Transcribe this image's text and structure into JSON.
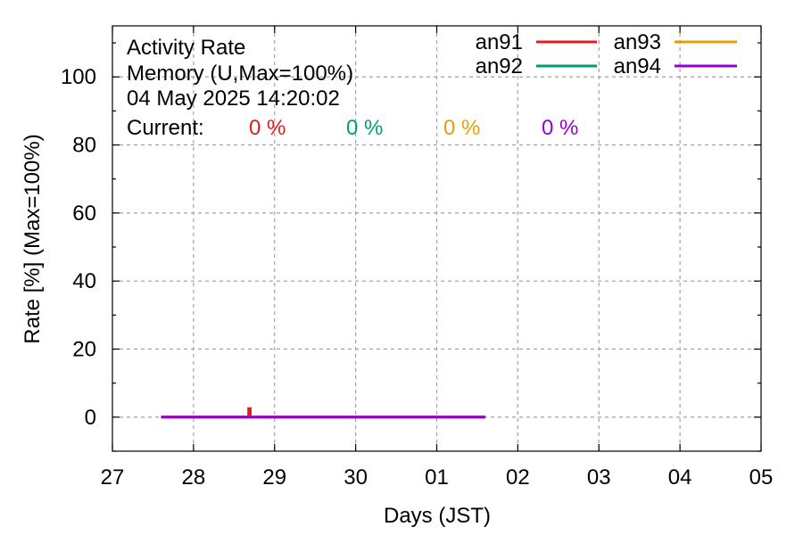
{
  "chart_data": {
    "type": "line",
    "title_lines": [
      "Activity Rate",
      "Memory (U,Max=100%)",
      "04 May 2025 14:20:02"
    ],
    "current_label": "Current:",
    "xlabel": "Days (JST)",
    "ylabel": "Rate [%]  (Max=100%)",
    "x_categories": [
      "27",
      "28",
      "29",
      "30",
      "01",
      "02",
      "03",
      "04",
      "05"
    ],
    "xlim": [
      0,
      8
    ],
    "ylim": [
      -10,
      115
    ],
    "y_ticks": [
      0,
      20,
      40,
      60,
      80,
      100
    ],
    "grid": true,
    "legend_position": "top-right",
    "series": [
      {
        "name": "an91",
        "color": "#e41a1c",
        "current": "0 %",
        "x": [
          0.6,
          1.68,
          1.68,
          1.7,
          1.7,
          4.6
        ],
        "y": [
          0,
          0,
          2.5,
          2.5,
          0,
          0
        ]
      },
      {
        "name": "an92",
        "color": "#009e73",
        "current": "0 %",
        "x": [
          0.6,
          4.6
        ],
        "y": [
          0,
          0
        ]
      },
      {
        "name": "an93",
        "color": "#e69f00",
        "current": "0 %",
        "x": [
          0.6,
          4.6
        ],
        "y": [
          0,
          0
        ]
      },
      {
        "name": "an94",
        "color": "#9400d3",
        "current": "0 %",
        "x": [
          0.6,
          4.6
        ],
        "y": [
          0,
          0
        ]
      }
    ]
  }
}
